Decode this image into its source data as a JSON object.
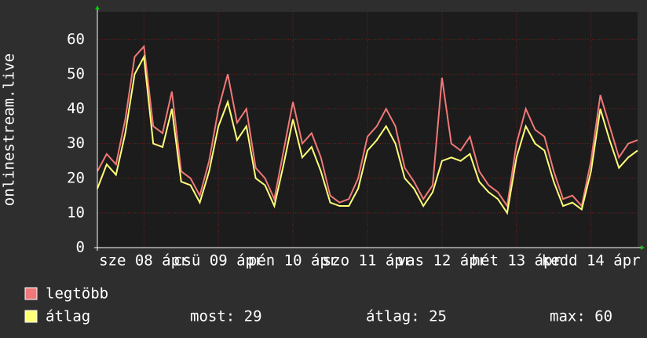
{
  "chart_data": {
    "type": "line",
    "y_label": "onlinestream.live",
    "categories": [
      null,
      null,
      null,
      null,
      null,
      "sze 08 ápr",
      null,
      null,
      null,
      null,
      null,
      null,
      null,
      "csü 09 ápr",
      null,
      null,
      null,
      null,
      null,
      null,
      null,
      "pén 10 ápr",
      null,
      null,
      null,
      null,
      null,
      null,
      null,
      "szo 11 ápr",
      null,
      null,
      null,
      null,
      null,
      null,
      null,
      "vas 12 ápr",
      null,
      null,
      null,
      null,
      null,
      null,
      null,
      "hét 13 ápr",
      null,
      null,
      null,
      null,
      null,
      null,
      null,
      "kedd 14 ápr",
      null,
      null,
      null,
      null,
      null
    ],
    "series": [
      {
        "name": "legtöbb",
        "color": "#f07878",
        "values": [
          22,
          27,
          24,
          37,
          55,
          58,
          35,
          33,
          45,
          22,
          20,
          15,
          25,
          40,
          50,
          36,
          40,
          23,
          20,
          14,
          28,
          42,
          30,
          33,
          26,
          15,
          13,
          14,
          20,
          32,
          35,
          40,
          35,
          23,
          19,
          14,
          18,
          49,
          30,
          28,
          32,
          22,
          18,
          16,
          12,
          30,
          40,
          34,
          32,
          22,
          14,
          15,
          12,
          25,
          44,
          35,
          26,
          30,
          31
        ]
      },
      {
        "name": "átlag",
        "color": "#ffff78",
        "values": [
          17,
          24,
          21,
          33,
          50,
          55,
          30,
          29,
          40,
          19,
          18,
          13,
          22,
          35,
          42,
          31,
          35,
          20,
          18,
          12,
          24,
          37,
          26,
          29,
          22,
          13,
          12,
          12,
          17,
          28,
          31,
          35,
          30,
          20,
          17,
          12,
          16,
          25,
          26,
          25,
          27,
          19,
          16,
          14,
          10,
          26,
          35,
          30,
          28,
          19,
          12,
          13,
          11,
          22,
          40,
          31,
          23,
          26,
          28
        ]
      }
    ],
    "ylim": [
      0,
      68
    ],
    "yticks": [
      0,
      10,
      20,
      30,
      40,
      50,
      60
    ],
    "grid": true,
    "stats": [
      "most: 29",
      "átlag: 25",
      "max: 60"
    ]
  }
}
